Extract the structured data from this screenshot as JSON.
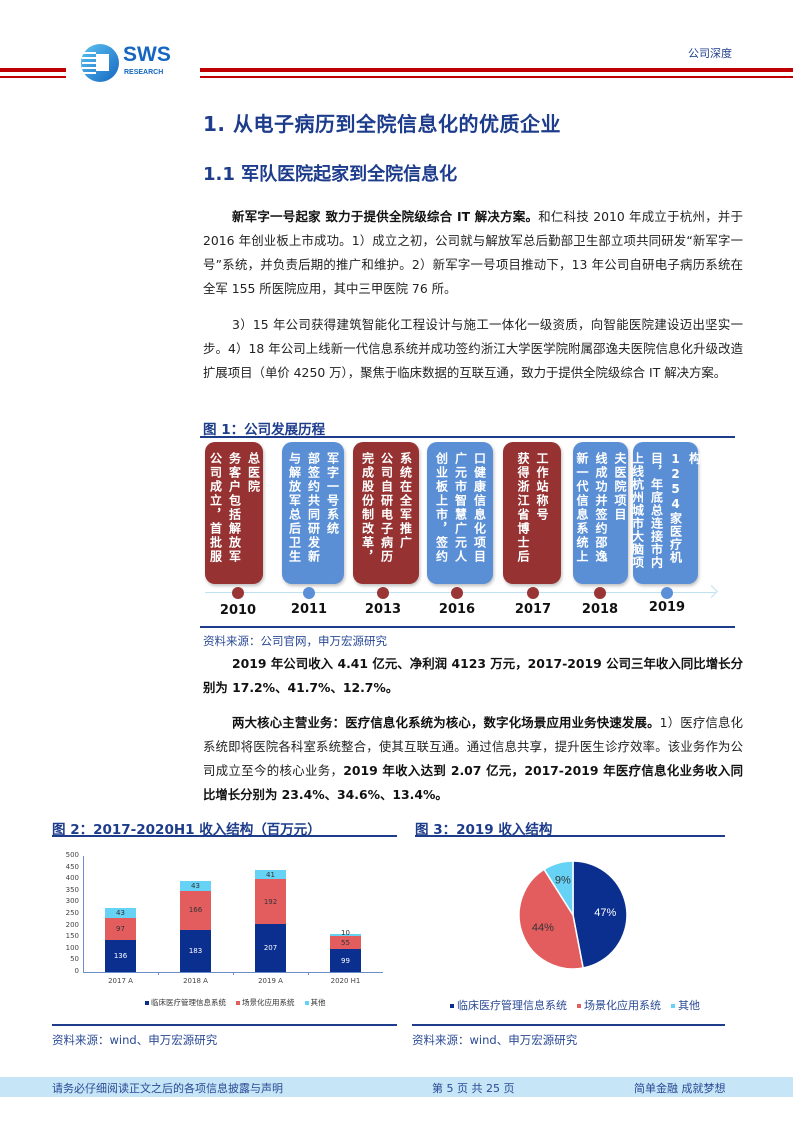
{
  "header": {
    "logo_text": "SWS",
    "logo_subtext": "RESEARCH",
    "tag": "公司深度"
  },
  "headings": {
    "h1": "1.  从电子病历到全院信息化的优质企业",
    "h2": "1.1  军队医院起家到全院信息化"
  },
  "paragraphs": {
    "p1_bold": "新军字一号起家 致力于提供全院级综合 IT  解决方案。",
    "p1_text": "和仁科技 2010 年成立于杭州，并于 2016 年创业板上市成功。1）成立之初，公司就与解放军总后勤部卫生部立项共同研发“新军字一号”系统，并负责后期的推广和维护。2）新军字一号项目推动下，13  年公司自研电子病历系统在全军 155 所医院应用，其中三甲医院 76 所。",
    "p2_text": "3）15  年公司获得建筑智能化工程设计与施工一体化一级资质，向智能医院建设迈出坚实一步。4）18  年公司上线新一代信息系统并成功签约浙江大学医学院附属邵逸夫医院信息化升级改造扩展项目（单价 4250 万），聚焦于临床数据的互联互通，致力于提供全院级综合 IT  解决方案。",
    "p3_bold": "2019 年公司收入 4.41 亿元、净利润 4123 万元，2017-2019 公司三年收入同比增长分别为 17.2%、41.7%、12.7%。",
    "p4_bold": "两大核心主营业务：医疗信息化系统为核心，数字化场景应用业务快速发展。",
    "p4_text1": "1）医疗信息化系统即将医院各科室系统整合，使其互联互通。通过信息共享，提升医生诊疗效率。该业务作为公司成立至今的核心业务，",
    "p4_bold2": "2019  年收入达到  2.07 亿元，2017-2019 年医疗信息化业务收入同比增长分别为 23.4%、34.6%、13.4%。"
  },
  "figure1": {
    "title": "图 1：公司发展历程",
    "source": "资料来源：公司官网，申万宏源研究",
    "events": [
      {
        "year": "2010",
        "color": "red",
        "text": "公司成立，首批服务客户包括解放军总医院"
      },
      {
        "year": "2011",
        "color": "blue",
        "text": "与解放军总后卫生部签约共同研发新军字一号系统"
      },
      {
        "year": "2013",
        "color": "red",
        "text": "完成股份制改革，公司自研电子病历系统在全军推广"
      },
      {
        "year": "2016",
        "color": "blue",
        "text": "创业板上市，签约广元市智慧广元人口健康信息化项目"
      },
      {
        "year": "2017",
        "color": "red",
        "text": "获得浙江省博士后工作站称号"
      },
      {
        "year": "2018",
        "color": "red",
        "text": "新一代信息系统上线成功并签约邵逸夫医院项目"
      },
      {
        "year": "2019",
        "color": "blue",
        "text": "上线杭州城市大脑项目，年底总连接市内1254家医疗机构"
      }
    ]
  },
  "figure2": {
    "title": "图 2：2017-2020H1 收入结构（百万元）",
    "source": "资料来源：wind、申万宏源研究"
  },
  "figure3": {
    "title": "图 3：2019 收入结构",
    "source": "资料来源：wind、申万宏源研究"
  },
  "chart_data": [
    {
      "type": "bar",
      "stacked": true,
      "title": "图 2：2017-2020H1 收入结构（百万元）",
      "xlabel": "",
      "ylabel": "",
      "ylim": [
        0,
        500
      ],
      "yticks": [
        0,
        50,
        100,
        150,
        200,
        250,
        300,
        350,
        400,
        450,
        500
      ],
      "categories": [
        "2017 A",
        "2018 A",
        "2019 A",
        "2020 H1"
      ],
      "series": [
        {
          "name": "临床医疗管理信息系统",
          "color": "#0a2f8f",
          "values": [
            136,
            183,
            207,
            99
          ]
        },
        {
          "name": "场景化应用系统",
          "color": "#e35d5f",
          "values": [
            97,
            166,
            192,
            55
          ]
        },
        {
          "name": "其他",
          "color": "#66d2f5",
          "values": [
            43,
            43,
            41,
            10
          ]
        }
      ],
      "legend_position": "bottom",
      "grid": false
    },
    {
      "type": "pie",
      "title": "图 3：2019 收入结构",
      "labels": [
        "临床医疗管理信息系统",
        "场景化应用系统",
        "其他"
      ],
      "values": [
        47,
        44,
        9
      ],
      "value_labels": [
        "47%",
        "44%",
        "9%"
      ],
      "colors": [
        "#0a2f8f",
        "#e35d5f",
        "#66d2f5"
      ],
      "legend_position": "bottom"
    }
  ],
  "footer": {
    "disclaimer": "请务必仔细阅读正文之后的各项信息披露与声明",
    "page": "第 5 页 共 25 页",
    "slogan": "简单金融 成就梦想"
  }
}
